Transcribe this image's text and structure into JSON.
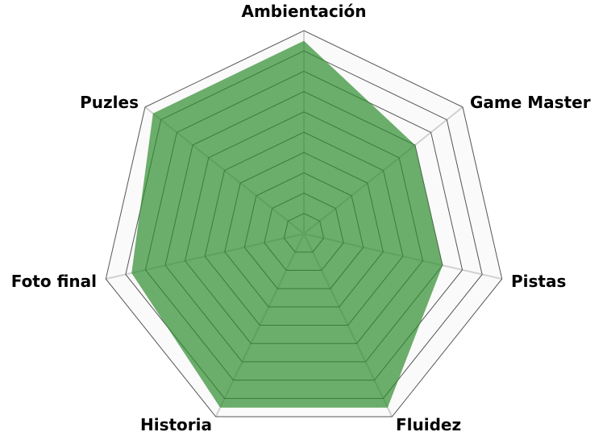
{
  "chart_data": {
    "type": "radar",
    "categories": [
      "Ambientación",
      "Game Master",
      "Pistas",
      "Fluidez",
      "Historia",
      "Foto final",
      "Puzles"
    ],
    "values": [
      9.5,
      7,
      7,
      9.5,
      9.5,
      8.7,
      9.5
    ],
    "rlim": [
      0,
      10
    ],
    "ring_step": 1,
    "grid": true,
    "fill_color": "#2e8b2e",
    "legend": "none"
  }
}
